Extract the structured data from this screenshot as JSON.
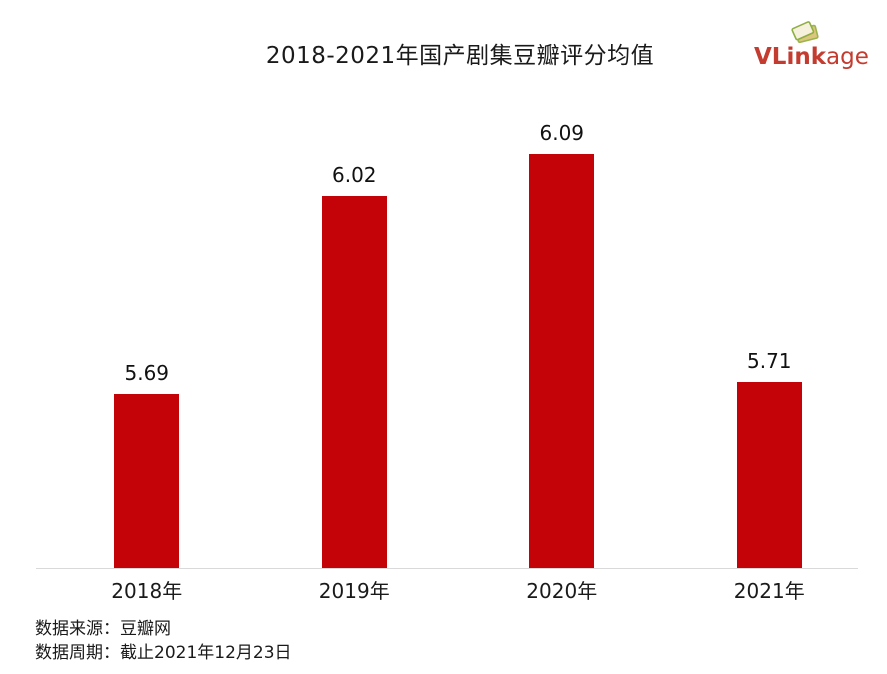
{
  "header": {
    "title": "2018-2021年国产剧集豆瓣评分均值"
  },
  "logo": {
    "bold": "VLink",
    "light": "age",
    "icon": "stacked-cards-icon",
    "color": "#c43b2f"
  },
  "chart_data": {
    "type": "bar",
    "title": "2018-2021年国产剧集豆瓣评分均值",
    "categories": [
      "2018年",
      "2019年",
      "2020年",
      "2021年"
    ],
    "values": [
      5.69,
      6.02,
      6.09,
      5.71
    ],
    "value_labels": [
      "5.69",
      "6.02",
      "6.09",
      "5.71"
    ],
    "xlabel": "",
    "ylabel": "",
    "ylim": [
      5.4,
      6.2
    ],
    "grid": false,
    "legend_position": "none",
    "bar_color": "#c40308",
    "axis_line_color": "#d9d9d9"
  },
  "footer": {
    "source": "数据来源：豆瓣网",
    "period": "数据周期：截止2021年12月23日"
  }
}
